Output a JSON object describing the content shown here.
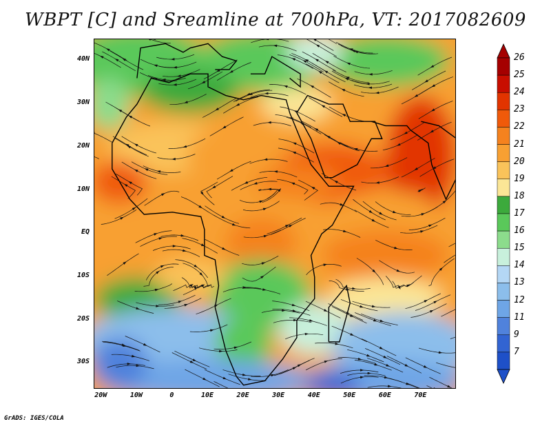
{
  "title": "WBPT [C] and Sreamline at 700hPa, VT: 2017082609",
  "credit": "GrADS: IGES/COLA",
  "map": {
    "lat_labels": [
      "40N",
      "30N",
      "20N",
      "10N",
      "EQ",
      "10S",
      "20S",
      "30S"
    ],
    "lat_values": [
      40,
      30,
      20,
      10,
      0,
      -10,
      -20,
      -30
    ],
    "lon_labels": [
      "20W",
      "10W",
      "0",
      "10E",
      "20E",
      "30E",
      "40E",
      "50E",
      "60E",
      "70E"
    ],
    "lon_values": [
      -20,
      -10,
      0,
      10,
      20,
      30,
      40,
      50,
      60,
      70
    ],
    "lat_range": [
      -36,
      45
    ],
    "lon_range": [
      -22,
      80
    ]
  },
  "colorbar": {
    "levels": [
      "26",
      "25",
      "24",
      "23",
      "22",
      "21",
      "20",
      "19",
      "18",
      "17",
      "16",
      "15",
      "14",
      "13",
      "12",
      "11",
      "9",
      "7"
    ],
    "colors": [
      "#a50000",
      "#c80e00",
      "#e23400",
      "#f05a0a",
      "#f5821e",
      "#f8a032",
      "#fac35a",
      "#fbe696",
      "#3caa3c",
      "#5ac85a",
      "#8cdc8c",
      "#c8f0dc",
      "#b4d7f5",
      "#8cbeeb",
      "#6ea5e6",
      "#5082dc",
      "#3264d2",
      "#1e50c8"
    ]
  }
}
